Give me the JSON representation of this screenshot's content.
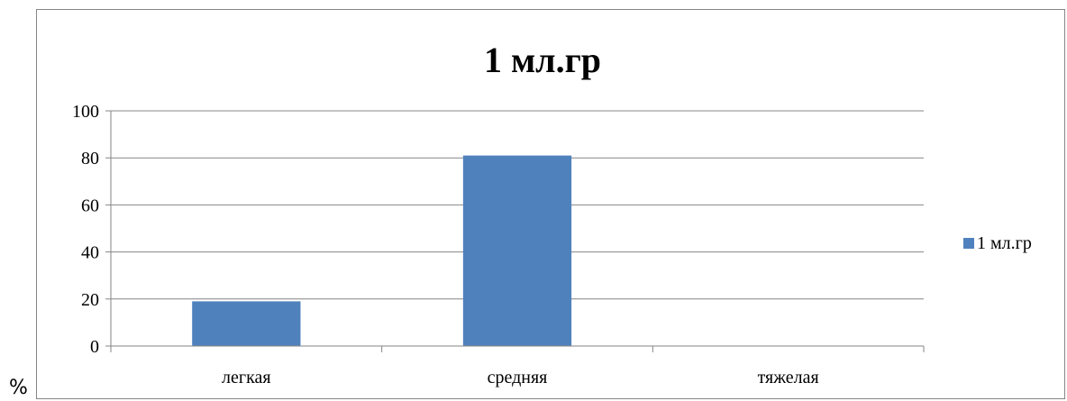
{
  "side_label": "%",
  "chart_data": {
    "type": "bar",
    "title": "1 мл.гр",
    "categories": [
      "легкая",
      "средняя",
      "тяжелая"
    ],
    "series": [
      {
        "name": "1 мл.гр",
        "values": [
          19,
          81,
          0
        ],
        "color": "#4F81BD"
      }
    ],
    "ylim": [
      0,
      100
    ],
    "yticks": [
      "0",
      "20",
      "40",
      "60",
      "80",
      "100"
    ],
    "grid": true,
    "legend": "right"
  }
}
